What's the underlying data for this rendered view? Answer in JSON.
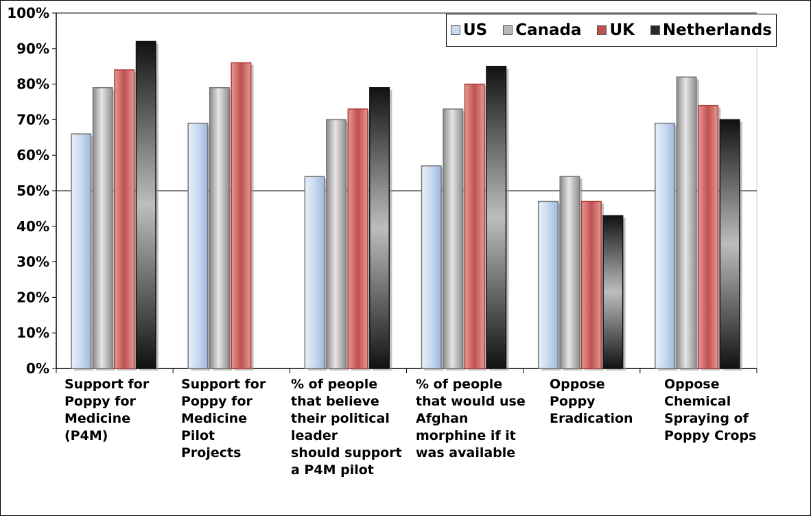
{
  "title": "",
  "chart_data": {
    "type": "bar",
    "categories": [
      "Support for\nPoppy for\nMedicine\n(P4M)",
      "Support for\nPoppy for\nMedicine\nPilot\nProjects",
      "% of people\nthat believe\ntheir political\nleader\nshould support\na P4M pilot",
      "% of people\nthat would use\nAfghan\nmorphine if it\nwas available",
      "Oppose\nPoppy\nEradication",
      "Oppose\nChemical\nSpraying of\nPoppy Crops"
    ],
    "series": [
      {
        "name": "US",
        "values": [
          66,
          69,
          54,
          57,
          47,
          69
        ],
        "color": "#c9daf0"
      },
      {
        "name": "Canada",
        "values": [
          79,
          79,
          70,
          73,
          54,
          82
        ],
        "color": "#b8b8b8"
      },
      {
        "name": "UK",
        "values": [
          84,
          86,
          73,
          80,
          47,
          74
        ],
        "color": "#c0504d"
      },
      {
        "name": "Netherlands",
        "values": [
          92,
          null,
          79,
          85,
          43,
          70
        ],
        "color": "#2a2a2a"
      }
    ],
    "ylim": [
      0,
      100
    ],
    "yticks": [
      "0%",
      "10%",
      "20%",
      "30%",
      "40%",
      "50%",
      "60%",
      "70%",
      "80%",
      "90%",
      "100%"
    ],
    "grid_lines_at": [
      50,
      100
    ],
    "legend_position": "top-right",
    "xlabel": "",
    "ylabel": ""
  }
}
